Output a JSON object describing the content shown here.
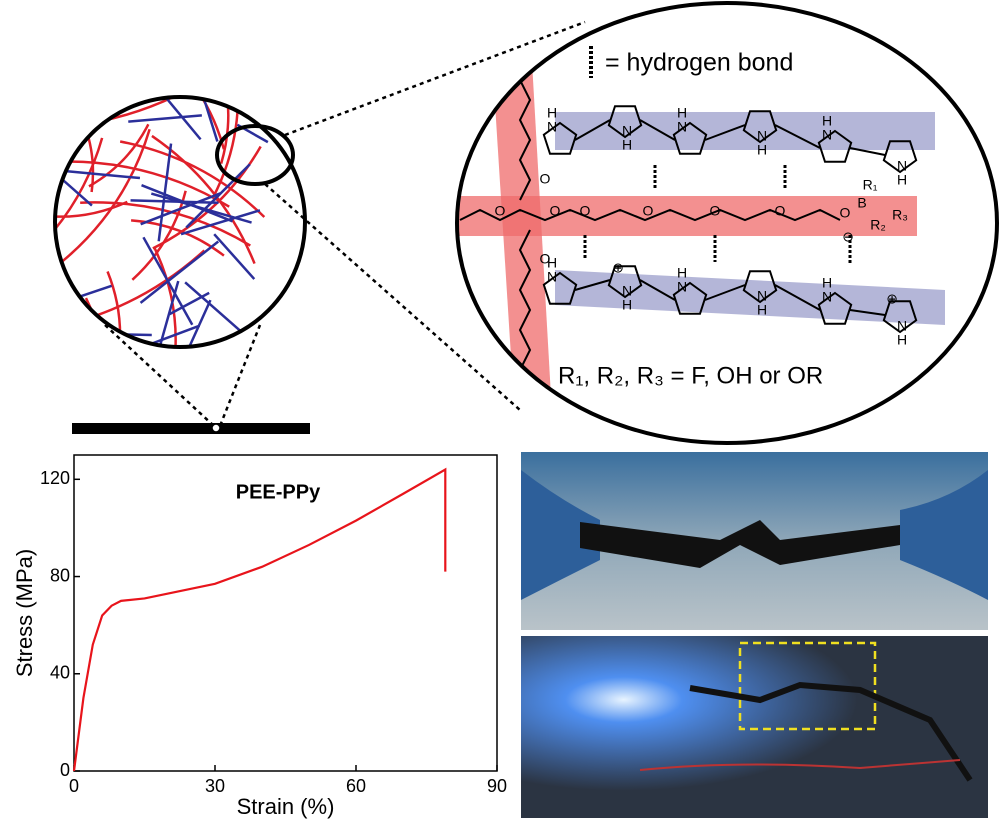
{
  "schematic": {
    "legend_text": "= hydrogen bond",
    "substituents": "R₁, R₂, R₃ = F, OH or OR",
    "atoms": [
      "H",
      "N",
      "N",
      "H",
      "H",
      "N",
      "N",
      "H",
      "H",
      "N",
      "N",
      "H",
      "H",
      "N",
      "N",
      "H",
      "H",
      "N",
      "N",
      "H",
      "H",
      "N",
      "N",
      "H",
      "B",
      "R₁",
      "R₂",
      "R₃",
      "⊖",
      "⊕",
      "⊕",
      "O",
      "O",
      "O",
      "O",
      "O",
      "O",
      "O",
      "O",
      "O"
    ]
  },
  "chart_data": {
    "type": "line",
    "title": "PEE-PPy",
    "x_label": "Strain (%)",
    "y_label": "Stress (MPa)",
    "x": [
      0,
      2,
      4,
      6,
      8,
      10,
      15,
      20,
      25,
      30,
      40,
      50,
      60,
      70,
      79,
      79
    ],
    "values": [
      0,
      30,
      52,
      64,
      68,
      70,
      71,
      73,
      75,
      77,
      84,
      93,
      103,
      114,
      124,
      82
    ],
    "color": "#e8141b",
    "xlim": [
      0,
      90
    ],
    "xticks": [
      0,
      30,
      60,
      90
    ],
    "ylim": [
      0,
      130
    ],
    "yticks": [
      0,
      40,
      80,
      120
    ]
  }
}
